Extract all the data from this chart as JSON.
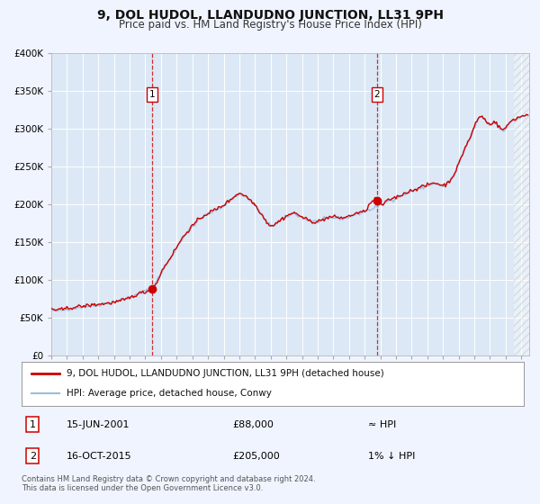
{
  "title": "9, DOL HUDOL, LLANDUDNO JUNCTION, LL31 9PH",
  "subtitle": "Price paid vs. HM Land Registry's House Price Index (HPI)",
  "background_color": "#f0f4ff",
  "plot_bg_color": "#dce8f5",
  "grid_color": "#ffffff",
  "ylim": [
    0,
    400000
  ],
  "xlim_start": 1995.0,
  "xlim_end": 2025.5,
  "yticks": [
    0,
    50000,
    100000,
    150000,
    200000,
    250000,
    300000,
    350000,
    400000
  ],
  "ytick_labels": [
    "£0",
    "£50K",
    "£100K",
    "£150K",
    "£200K",
    "£250K",
    "£300K",
    "£350K",
    "£400K"
  ],
  "xticks": [
    1995,
    1996,
    1997,
    1998,
    1999,
    2000,
    2001,
    2002,
    2003,
    2004,
    2005,
    2006,
    2007,
    2008,
    2009,
    2010,
    2011,
    2012,
    2013,
    2014,
    2015,
    2016,
    2017,
    2018,
    2019,
    2020,
    2021,
    2022,
    2023,
    2024,
    2025
  ],
  "sale1_x": 2001.45,
  "sale1_y": 88000,
  "sale2_x": 2015.79,
  "sale2_y": 205000,
  "line_color_property": "#cc0000",
  "line_color_hpi": "#99bbdd",
  "legend_label_property": "9, DOL HUDOL, LLANDUDNO JUNCTION, LL31 9PH (detached house)",
  "legend_label_hpi": "HPI: Average price, detached house, Conwy",
  "footer": "Contains HM Land Registry data © Crown copyright and database right 2024.\nThis data is licensed under the Open Government Licence v3.0.",
  "title_fontsize": 10,
  "subtitle_fontsize": 8.5,
  "ann1_label": "1",
  "ann1_date": "15-JUN-2001",
  "ann1_price": "£88,000",
  "ann1_hpi": "≈ HPI",
  "ann2_label": "2",
  "ann2_date": "16-OCT-2015",
  "ann2_price": "£205,000",
  "ann2_hpi": "1% ↓ HPI"
}
